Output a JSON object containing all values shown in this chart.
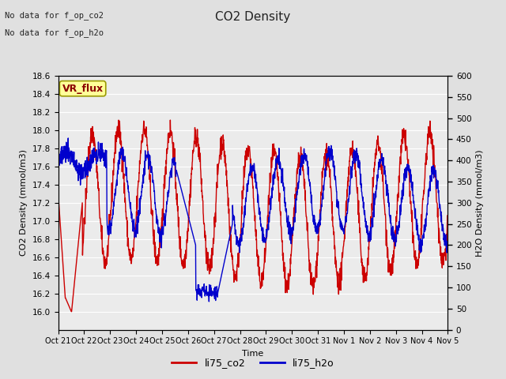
{
  "title": "CO2 Density",
  "xlabel": "Time",
  "ylabel_left": "CO2 Density (mmol/m3)",
  "ylabel_right": "H2O Density (mmol/m3)",
  "annotation_line1": "No data for f_op_co2",
  "annotation_line2": "No data for f_op_h2o",
  "vr_flux_label": "VR_flux",
  "legend_labels": [
    "li75_co2",
    "li75_h2o"
  ],
  "co2_color": "#cc0000",
  "h2o_color": "#0000cc",
  "ylim_left": [
    15.8,
    18.6
  ],
  "ylim_right": [
    0,
    600
  ],
  "yticks_left": [
    16.0,
    16.2,
    16.4,
    16.6,
    16.8,
    17.0,
    17.2,
    17.4,
    17.6,
    17.8,
    18.0,
    18.2,
    18.4,
    18.6
  ],
  "yticks_right": [
    0,
    50,
    100,
    150,
    200,
    250,
    300,
    350,
    400,
    450,
    500,
    550,
    600
  ],
  "xtick_labels": [
    "Oct 21",
    "Oct 22",
    "Oct 23",
    "Oct 24",
    "Oct 25",
    "Oct 26",
    "Oct 27",
    "Oct 28",
    "Oct 29",
    "Oct 30",
    "Oct 31",
    "Nov 1",
    "Nov 2",
    "Nov 3",
    "Nov 4",
    "Nov 5"
  ],
  "bg_color": "#e0e0e0",
  "plot_bg_color": "#ebebeb",
  "linewidth": 1.0,
  "title_fontsize": 11,
  "axis_fontsize": 8,
  "tick_fontsize": 7.5
}
